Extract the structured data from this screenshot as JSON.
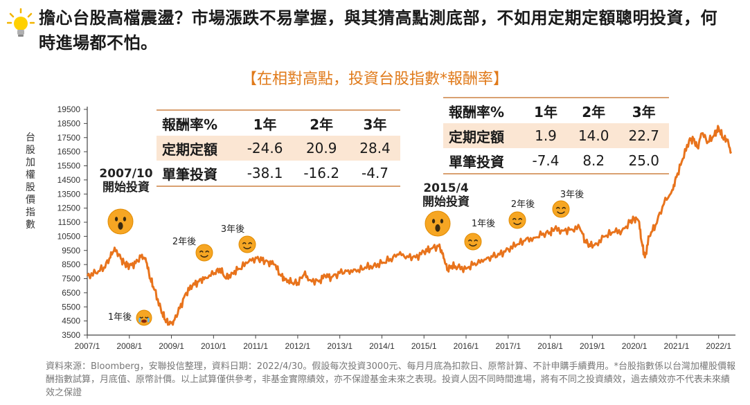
{
  "headline": "擔心台股高檔震盪？市場漲跌不易掌握，與其猜高點測底部，不如用定期定額聰明投資，何時進場都不怕。",
  "subtitle": "【在相對高點，投資台股指數*報酬率】",
  "colors": {
    "line": "#e8731c",
    "accent": "#e07a1a",
    "table_highlight": "#fbe6d3",
    "face": "#f6a623"
  },
  "table_2007": {
    "header": [
      "報酬率%",
      "1年",
      "2年",
      "3年"
    ],
    "rows": [
      {
        "label": "定期定額",
        "values": [
          "-24.6",
          "20.9",
          "28.4"
        ]
      },
      {
        "label": "單筆投資",
        "values": [
          "-38.1",
          "-16.2",
          "-4.7"
        ]
      }
    ]
  },
  "table_2015": {
    "header": [
      "報酬率%",
      "1年",
      "2年",
      "3年"
    ],
    "rows": [
      {
        "label": "定期定額",
        "values": [
          "1.9",
          "14.0",
          "22.7"
        ]
      },
      {
        "label": "單筆投資",
        "values": [
          "-7.4",
          "8.2",
          "25.0"
        ]
      }
    ]
  },
  "footnote": "資料來源：Bloomberg，安聯投信整理，資料日期：2022/4/30。假設每次投資3000元、每月月底為扣款日、原幣計算、不計申購手續費用。*台股指數係以台灣加權股價報酬指數試算，月底值、原幣計價。以上試算僅供參考，非基金實際績效，亦不保證基金未來之表現。投資人因不同時間進場，將有不同之投資績效，過去績效亦不代表未來績效之保證",
  "chart_data": {
    "type": "line",
    "title": "【在相對高點，投資台股指數*報酬率】",
    "ylabel": "台股加權股價指數",
    "xlabel": "",
    "ylim": [
      3500,
      19500
    ],
    "y_ticks": [
      "3500",
      "4500",
      "5500",
      "6500",
      "7500",
      "8500",
      "9500",
      "10500",
      "11500",
      "12500",
      "13500",
      "14500",
      "15500",
      "16500",
      "17500",
      "18500",
      "19500"
    ],
    "x_ticks": [
      "2007/1",
      "2008/1",
      "2009/1",
      "2010/1",
      "2011/1",
      "2012/1",
      "2013/1",
      "2014/1",
      "2015/1",
      "2016/1",
      "2017/1",
      "2018/1",
      "2019/1",
      "2020/1",
      "2021/1",
      "2022/1"
    ],
    "series": [
      {
        "name": "台股加權股價指數",
        "x": [
          2007.0,
          2007.2,
          2007.4,
          2007.55,
          2007.65,
          2007.8,
          2007.9,
          2008.0,
          2008.15,
          2008.3,
          2008.4,
          2008.5,
          2008.6,
          2008.75,
          2008.85,
          2008.95,
          2009.05,
          2009.2,
          2009.35,
          2009.5,
          2009.65,
          2009.8,
          2010.0,
          2010.15,
          2010.3,
          2010.45,
          2010.6,
          2010.8,
          2011.0,
          2011.15,
          2011.3,
          2011.45,
          2011.6,
          2011.7,
          2011.85,
          2012.0,
          2012.15,
          2012.3,
          2012.5,
          2012.65,
          2012.8,
          2013.0,
          2013.2,
          2013.4,
          2013.6,
          2013.8,
          2014.0,
          2014.2,
          2014.4,
          2014.6,
          2014.8,
          2015.0,
          2015.15,
          2015.35,
          2015.45,
          2015.55,
          2015.65,
          2015.8,
          2016.0,
          2016.2,
          2016.4,
          2016.6,
          2016.8,
          2017.0,
          2017.2,
          2017.4,
          2017.6,
          2017.8,
          2018.0,
          2018.1,
          2018.3,
          2018.5,
          2018.7,
          2018.83,
          2018.95,
          2019.1,
          2019.3,
          2019.5,
          2019.7,
          2019.9,
          2020.0,
          2020.1,
          2020.18,
          2020.25,
          2020.35,
          2020.5,
          2020.7,
          2020.9,
          2021.0,
          2021.15,
          2021.3,
          2021.4,
          2021.5,
          2021.6,
          2021.75,
          2021.9,
          2022.0,
          2022.1,
          2022.2,
          2022.3
        ],
        "values": [
          7700,
          7900,
          8300,
          9000,
          9700,
          8900,
          8500,
          8400,
          8600,
          9200,
          8700,
          7500,
          6700,
          5300,
          4600,
          4250,
          4500,
          5400,
          6500,
          7000,
          7300,
          7600,
          7800,
          8200,
          7500,
          7900,
          8200,
          8600,
          9000,
          8800,
          8700,
          8500,
          7700,
          7500,
          7200,
          7200,
          7800,
          7400,
          7300,
          7700,
          7600,
          7900,
          8100,
          8000,
          8300,
          8400,
          8600,
          8900,
          9200,
          9100,
          9000,
          9400,
          9600,
          9800,
          9300,
          8100,
          8400,
          8300,
          8200,
          8600,
          8700,
          9100,
          9200,
          9600,
          9900,
          10200,
          10400,
          10600,
          10800,
          11000,
          10900,
          11000,
          11100,
          10200,
          9800,
          10000,
          10500,
          10800,
          10900,
          11500,
          11800,
          11600,
          10000,
          9000,
          10500,
          11300,
          12800,
          13800,
          14700,
          16000,
          17300,
          17400,
          16800,
          17800,
          17200,
          17700,
          18200,
          17500,
          17300,
          16500
        ]
      }
    ],
    "annotations": [
      {
        "text": "2007/10\n開始投資",
        "x": 2007.75,
        "emoji": "shocked"
      },
      {
        "text": "1年後",
        "x": 2008.75,
        "emoji": "crying"
      },
      {
        "text": "2年後",
        "x": 2009.75,
        "emoji": "smile"
      },
      {
        "text": "3年後",
        "x": 2010.75,
        "emoji": "smile"
      },
      {
        "text": "2015/4\n開始投資",
        "x": 2015.3,
        "emoji": "shocked"
      },
      {
        "text": "1年後",
        "x": 2016.3,
        "emoji": "smile"
      },
      {
        "text": "2年後",
        "x": 2017.3,
        "emoji": "smile"
      },
      {
        "text": "3年後",
        "x": 2018.3,
        "emoji": "smile"
      }
    ]
  }
}
